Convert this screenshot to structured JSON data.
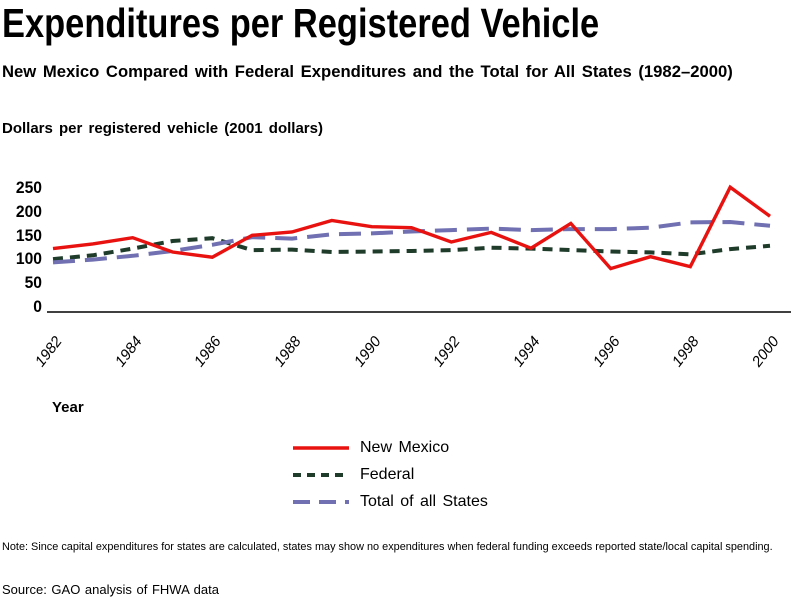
{
  "title": "Expenditures per Registered Vehicle",
  "subtitle": "New Mexico Compared with Federal Expenditures and the Total for All States (1982–2000)",
  "unit_label": "Dollars per registered vehicle (2001 dollars)",
  "x_axis_label": "Year",
  "note": "Note:  Since capital expenditures for states are calculated, states may show no expenditures when federal funding exceeds reported state/local capital spending.",
  "source": "Source: GAO analysis of FHWA data",
  "colors": {
    "new_mexico": "#e81210",
    "federal": "#1f3c2b",
    "total_all_states": "#7070b2",
    "axis": "#000000",
    "text": "#000000",
    "background": "#ffffff"
  },
  "chart_data": {
    "type": "line",
    "title": "Expenditures per Registered Vehicle",
    "xlabel": "Year",
    "ylabel": "Dollars per registered vehicle (2001 dollars)",
    "x": [
      1982,
      1983,
      1984,
      1985,
      1986,
      1987,
      1988,
      1989,
      1990,
      1991,
      1992,
      1993,
      1994,
      1995,
      1996,
      1997,
      1998,
      1999,
      2000
    ],
    "series": [
      {
        "name": "New Mexico",
        "color": "#e81210",
        "dash": "solid",
        "values": [
          122,
          132,
          145,
          115,
          104,
          150,
          157,
          181,
          168,
          166,
          136,
          156,
          123,
          175,
          80,
          105,
          84,
          251,
          190
        ]
      },
      {
        "name": "Federal",
        "color": "#1f3c2b",
        "dash": "short",
        "values": [
          100,
          108,
          122,
          138,
          144,
          119,
          120,
          115,
          116,
          117,
          119,
          124,
          122,
          119,
          116,
          114,
          110,
          121,
          128
        ]
      },
      {
        "name": "Total of all States",
        "color": "#7070b2",
        "dash": "long",
        "values": [
          93,
          99,
          107,
          117,
          130,
          146,
          143,
          152,
          154,
          158,
          161,
          164,
          161,
          163,
          163,
          166,
          177,
          178,
          170
        ]
      }
    ],
    "ylim": [
      0,
      250
    ],
    "yticks": [
      0,
      50,
      100,
      150,
      200,
      250
    ],
    "xticks": [
      1982,
      1984,
      1986,
      1988,
      1990,
      1992,
      1994,
      1996,
      1998,
      2000
    ],
    "grid": false,
    "legend_position": "bottom-center"
  }
}
